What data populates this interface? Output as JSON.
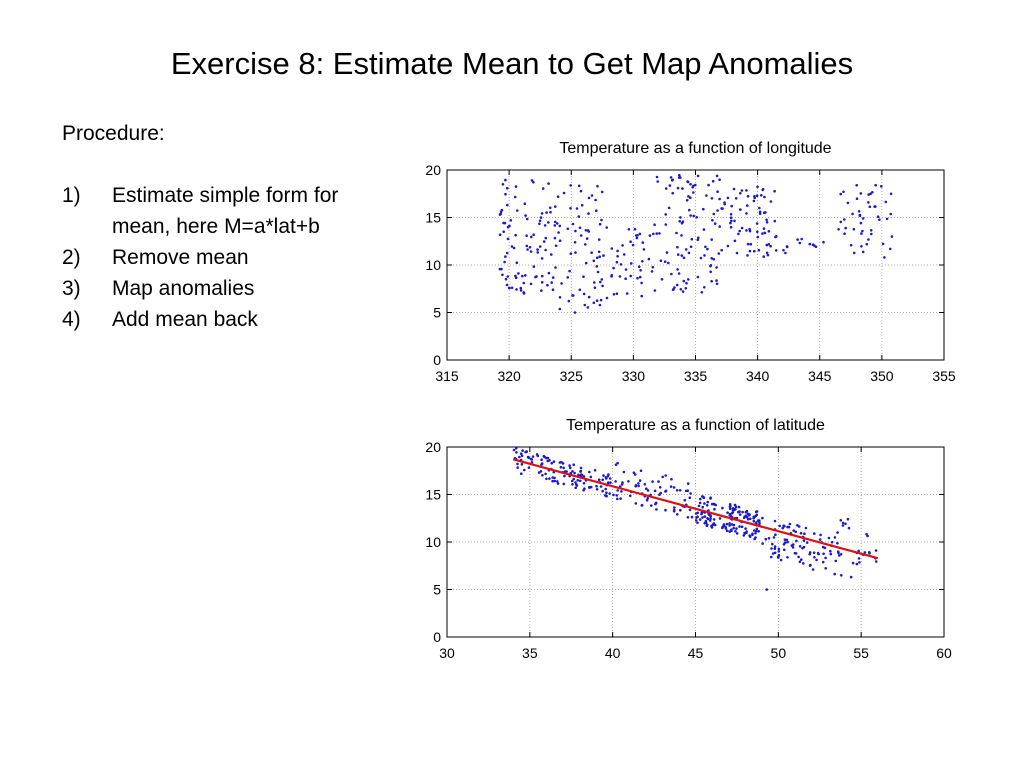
{
  "slide": {
    "title": "Exercise 8: Estimate Mean to Get Map Anomalies",
    "procedure_heading": "Procedure:",
    "steps": [
      {
        "num": "1)",
        "text": "Estimate simple form for mean, here M=a*lat+b"
      },
      {
        "num": "2)",
        "text": "Remove mean"
      },
      {
        "num": "3)",
        "text": "Map anomalies"
      },
      {
        "num": "4)",
        "text": "Add mean back"
      }
    ]
  },
  "colors": {
    "points": "#1a1acc",
    "fit_line": "#dd1111",
    "grid": "#9a9a9a"
  },
  "chart_data": [
    {
      "type": "scatter",
      "title": "Temperature as a function of longitude",
      "xlim": [
        315,
        355
      ],
      "ylim": [
        0,
        20
      ],
      "xticks": [
        315,
        320,
        325,
        330,
        335,
        340,
        345,
        350,
        355
      ],
      "yticks": [
        0,
        5,
        10,
        15,
        20
      ],
      "grid": true,
      "point_color": "#1a1acc",
      "clusters": [
        {
          "x": [
            319.2,
            321.0
          ],
          "y": [
            7,
            19
          ],
          "n": 40
        },
        {
          "x": [
            321.0,
            324.0
          ],
          "y": [
            7,
            19
          ],
          "n": 55
        },
        {
          "x": [
            324.0,
            327.5
          ],
          "y": [
            5,
            18.5
          ],
          "n": 60
        },
        {
          "x": [
            327.5,
            331.5
          ],
          "y": [
            6.5,
            14
          ],
          "n": 40
        },
        {
          "x": [
            331.5,
            337.0
          ],
          "y": [
            7,
            19.5
          ],
          "n": 100
        },
        {
          "x": [
            337.0,
            341.5
          ],
          "y": [
            10.5,
            18.5
          ],
          "n": 70
        },
        {
          "x": [
            341.5,
            345.0
          ],
          "y": [
            11,
            13
          ],
          "n": 10
        },
        {
          "x": [
            346.5,
            351.0
          ],
          "y": [
            11,
            18.5
          ],
          "n": 45
        }
      ],
      "points": [
        [
          319.5,
          18.5
        ],
        [
          320.0,
          7.6
        ],
        [
          321.3,
          8.9
        ],
        [
          322.6,
          7.3
        ],
        [
          324.8,
          6.2
        ],
        [
          325.1,
          6.8
        ],
        [
          325.3,
          5.0
        ],
        [
          327.4,
          6.3
        ],
        [
          329.5,
          7.0
        ],
        [
          332.3,
          8.5
        ],
        [
          333.2,
          7.4
        ],
        [
          334.0,
          7.2
        ],
        [
          333.7,
          19.2
        ],
        [
          334.6,
          18.5
        ],
        [
          349.5,
          18.4
        ],
        [
          350.2,
          10.8
        ],
        [
          340.2,
          15.6
        ],
        [
          344.2,
          12.2
        ],
        [
          345.3,
          12.4
        ],
        [
          338.1,
          18.0
        ]
      ]
    },
    {
      "type": "scatter",
      "title": "Temperature as a function of latitude",
      "xlim": [
        30,
        60
      ],
      "ylim": [
        0,
        20
      ],
      "xticks": [
        30,
        35,
        40,
        45,
        50,
        55,
        60
      ],
      "yticks": [
        0,
        5,
        10,
        15,
        20
      ],
      "grid": true,
      "point_color": "#1a1acc",
      "spread_y": 1.2,
      "clusters": [
        {
          "x": [
            34.0,
            40.0
          ],
          "y_offset": [
            -1.3,
            1.3
          ],
          "n": 120
        },
        {
          "x": [
            40.0,
            45.0
          ],
          "y_offset": [
            -1.2,
            2.5
          ],
          "n": 70
        },
        {
          "x": [
            45.0,
            49.0
          ],
          "y_offset": [
            -1.5,
            1.6
          ],
          "n": 150
        },
        {
          "x": [
            49.0,
            53.5
          ],
          "y_offset": [
            -3.0,
            1.2
          ],
          "n": 90
        },
        {
          "x": [
            53.5,
            56.0
          ],
          "y_offset": [
            -2.0,
            3.0
          ],
          "n": 25
        }
      ],
      "points": [
        [
          49.3,
          5.0
        ],
        [
          54.2,
          12.4
        ],
        [
          55.9,
          9.1
        ],
        [
          53.8,
          6.5
        ],
        [
          52.1,
          7.1
        ],
        [
          35.2,
          19.0
        ],
        [
          40.3,
          18.3
        ],
        [
          43.2,
          17.0
        ],
        [
          50.7,
          11.9
        ],
        [
          54.4,
          6.3
        ]
      ],
      "fit_line": {
        "label": "M=a*lat+b",
        "color": "#dd1111",
        "x": [
          34,
          56
        ],
        "y": [
          18.7,
          8.3
        ]
      }
    }
  ]
}
